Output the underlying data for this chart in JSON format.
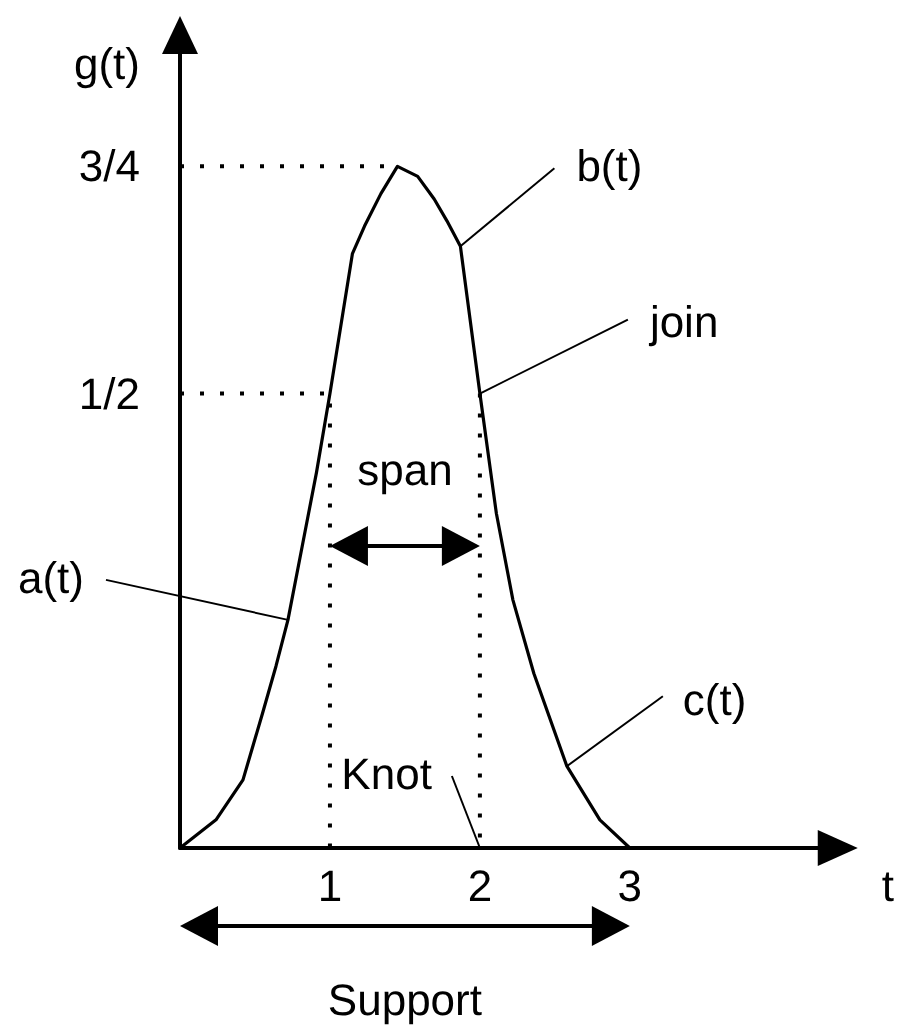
{
  "chart_data": {
    "type": "line",
    "xlabel": "t",
    "ylabel": "g(t)",
    "series": [
      {
        "color": "#000000",
        "line_style": "solid",
        "x": [
          0,
          0.24,
          0.42,
          0.55,
          0.64,
          0.72,
          0.815,
          0.91,
          1,
          1.15,
          1.23,
          1.34,
          1.45,
          1.585,
          1.695,
          1.78,
          1.87,
          2,
          2.11,
          2.22,
          2.36,
          2.58,
          2.8,
          3
        ],
        "values": [
          0,
          0.031,
          0.075,
          0.148,
          0.2,
          0.251,
          0.332,
          0.413,
          0.5,
          0.654,
          0.684,
          0.72,
          0.75,
          0.739,
          0.714,
          0.69,
          0.662,
          0.5,
          0.368,
          0.273,
          0.192,
          0.09,
          0.031,
          0
        ]
      },
      {
        "color": "#000000",
        "line_style": "dotted",
        "x": [
          0,
          1.45
        ],
        "values": [
          0.75,
          0.75
        ]
      },
      {
        "color": "#000000",
        "line_style": "dotted",
        "x": [
          0,
          1,
          1
        ],
        "values": [
          0.5,
          0.5,
          0
        ]
      },
      {
        "color": "#000000",
        "line_style": "dotted",
        "x": [
          2,
          2
        ],
        "values": [
          0.5,
          0
        ]
      }
    ],
    "xlim": [
      0,
      4.4
    ],
    "xticks": [
      1,
      2,
      3
    ],
    "ylim": [
      0,
      0.9
    ],
    "yticks": [
      {
        "value": 0.5,
        "label": "1/2"
      },
      {
        "value": 0.75,
        "label": "3/4"
      }
    ],
    "grid": false,
    "marker": "none",
    "annotations": [
      {
        "text": "a(t)",
        "x": 0.72,
        "y": 0.251
      },
      {
        "text": "b(t)",
        "x": 1.87,
        "y": 0.662
      },
      {
        "text": "join",
        "x": 2,
        "y": 0.5
      },
      {
        "text": "c(t)",
        "x": 2.58,
        "y": 0.09
      },
      {
        "text": "Knot",
        "x": 2,
        "y": 0
      },
      "span",
      "Support"
    ]
  }
}
